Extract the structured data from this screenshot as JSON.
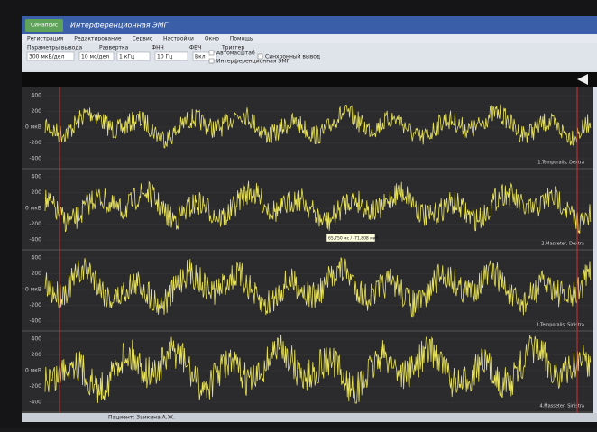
{
  "window": {
    "logo": "Синапсис",
    "title": "Интерференционная ЭМГ"
  },
  "menu": [
    "Регистрация",
    "Редактирование",
    "Сервис",
    "Настройки",
    "Окно",
    "Помощь"
  ],
  "toolbar": {
    "labels": [
      "Параметры вывода",
      "Развертка",
      "ФНЧ",
      "ФВЧ",
      "Триггер"
    ],
    "fields": [
      "300 мкВ/дел",
      "10 мс/дел",
      "1 кГц",
      "10 Гц",
      "Вкл"
    ],
    "checks": [
      "Автомасштаб",
      "Интерференционная ЭМГ",
      "Синхронный вывод"
    ]
  },
  "axis_ticks": [
    "400",
    "200",
    "0 мкВ",
    "-200",
    "-400"
  ],
  "channels": [
    "1.Temporalis, Dextra",
    "2.Masseter, Dextra",
    "3.Temporalis, Sinistra",
    "4.Masseter, Sinistra"
  ],
  "cursor": "65,750 мс / -71,808 мкВ",
  "status": "Пациент: Заикина А.Ж."
}
